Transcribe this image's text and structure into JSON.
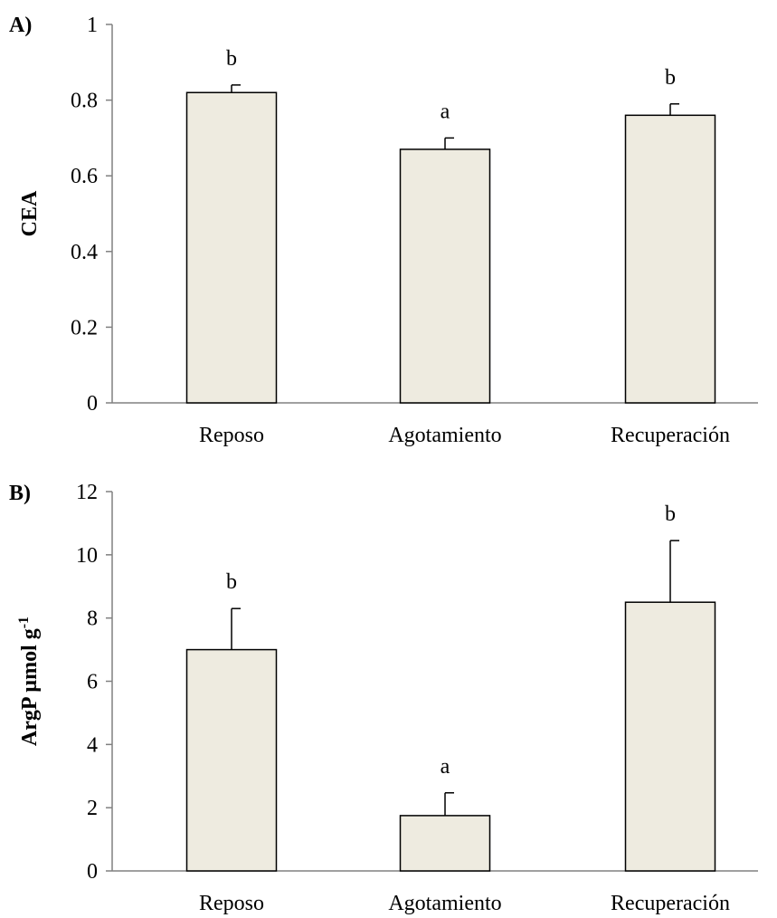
{
  "chart_data": [
    {
      "type": "bar",
      "panel_label": "A)",
      "ylabel": "CEA",
      "categories": [
        "Reposo",
        "Agotamiento",
        "Recuperación"
      ],
      "values": [
        0.82,
        0.67,
        0.76
      ],
      "errors": [
        0.02,
        0.03,
        0.03
      ],
      "significance": [
        "b",
        "a",
        "b"
      ],
      "ylim": [
        0,
        1
      ],
      "yticks": [
        "0",
        "0.2",
        "0.4",
        "0.6",
        "0.8",
        "1"
      ],
      "bar_color": "#eeebe0",
      "grid": false
    },
    {
      "type": "bar",
      "panel_label": "B)",
      "ylabel": "ArgP µmol g",
      "ylabel_superscript": "-1",
      "categories": [
        "Reposo",
        "Agotamiento",
        "Recuperación"
      ],
      "values": [
        7.0,
        1.75,
        8.5
      ],
      "errors": [
        1.3,
        0.72,
        1.95
      ],
      "significance": [
        "b",
        "a",
        "b"
      ],
      "ylim": [
        0,
        12
      ],
      "yticks": [
        "0",
        "2",
        "4",
        "6",
        "8",
        "10",
        "12"
      ],
      "bar_color": "#eeebe0",
      "grid": false
    }
  ]
}
